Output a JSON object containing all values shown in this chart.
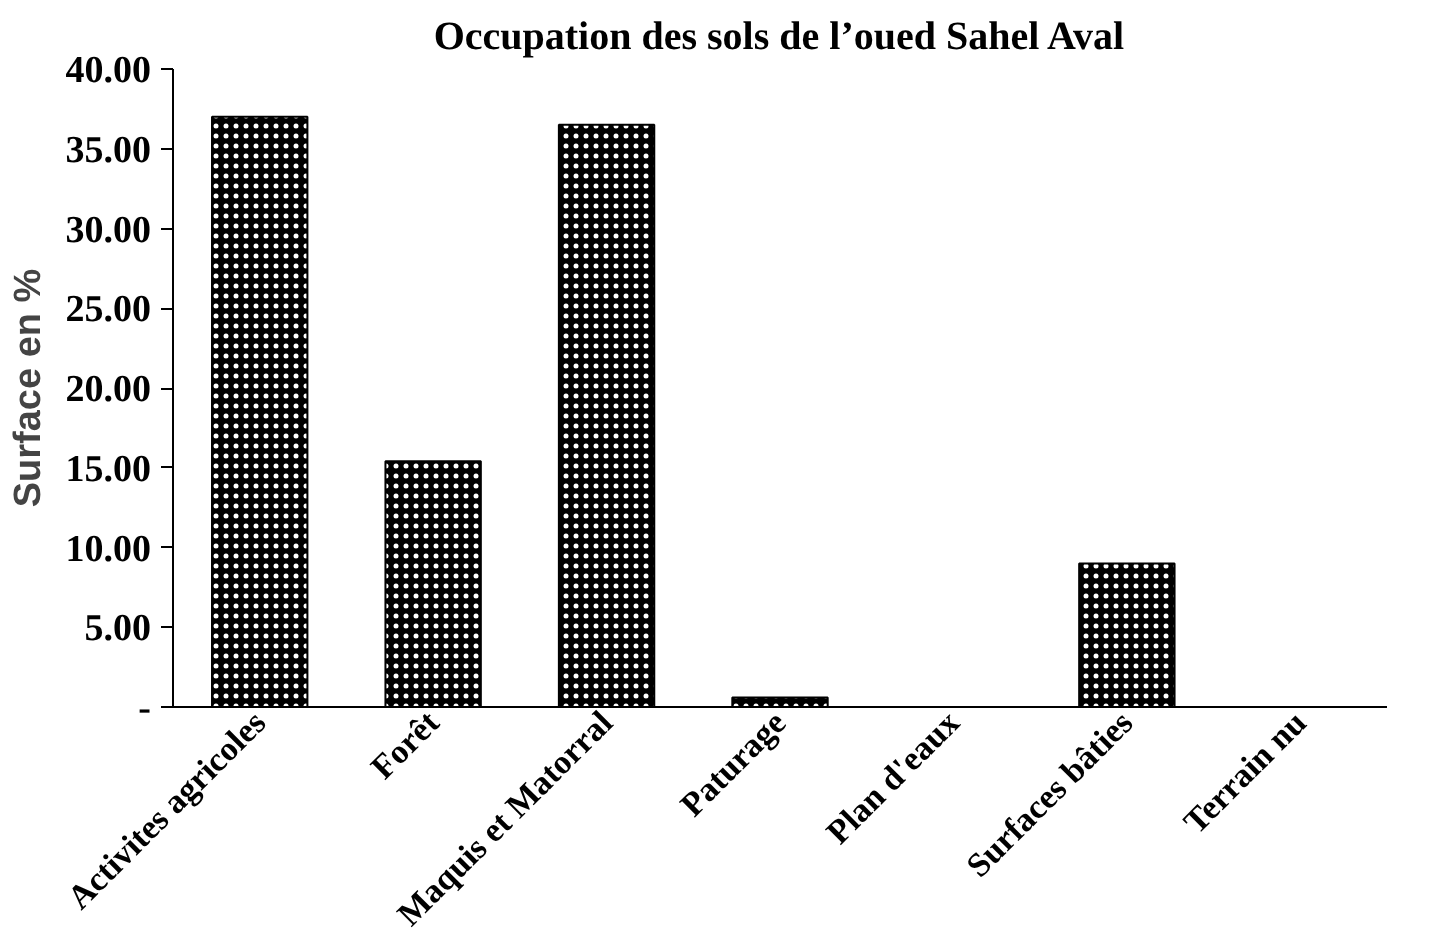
{
  "chart_data": {
    "type": "bar",
    "title": "Occupation des sols de l’oued Sahel Aval",
    "ylabel": "Surface en %",
    "categories": [
      "Activites agricoles",
      "Forêt",
      "Maquis et Matorral",
      "Paturage",
      "Plan d'eaux",
      "Surfaces bâties",
      "Terrain nu"
    ],
    "values": [
      37.0,
      15.4,
      36.5,
      0.6,
      0,
      9.0,
      0
    ],
    "color": "#000000",
    "ylim": [
      0,
      40
    ],
    "yticks": [
      {
        "value": 0,
        "label": "-"
      },
      {
        "value": 5,
        "label": "5.00"
      },
      {
        "value": 10,
        "label": "10.00"
      },
      {
        "value": 15,
        "label": "15.00"
      },
      {
        "value": 20,
        "label": "20.00"
      },
      {
        "value": 25,
        "label": "25.00"
      },
      {
        "value": 30,
        "label": "30.00"
      },
      {
        "value": 35,
        "label": "35.00"
      },
      {
        "value": 40,
        "label": "40.00"
      }
    ],
    "grid": false
  }
}
